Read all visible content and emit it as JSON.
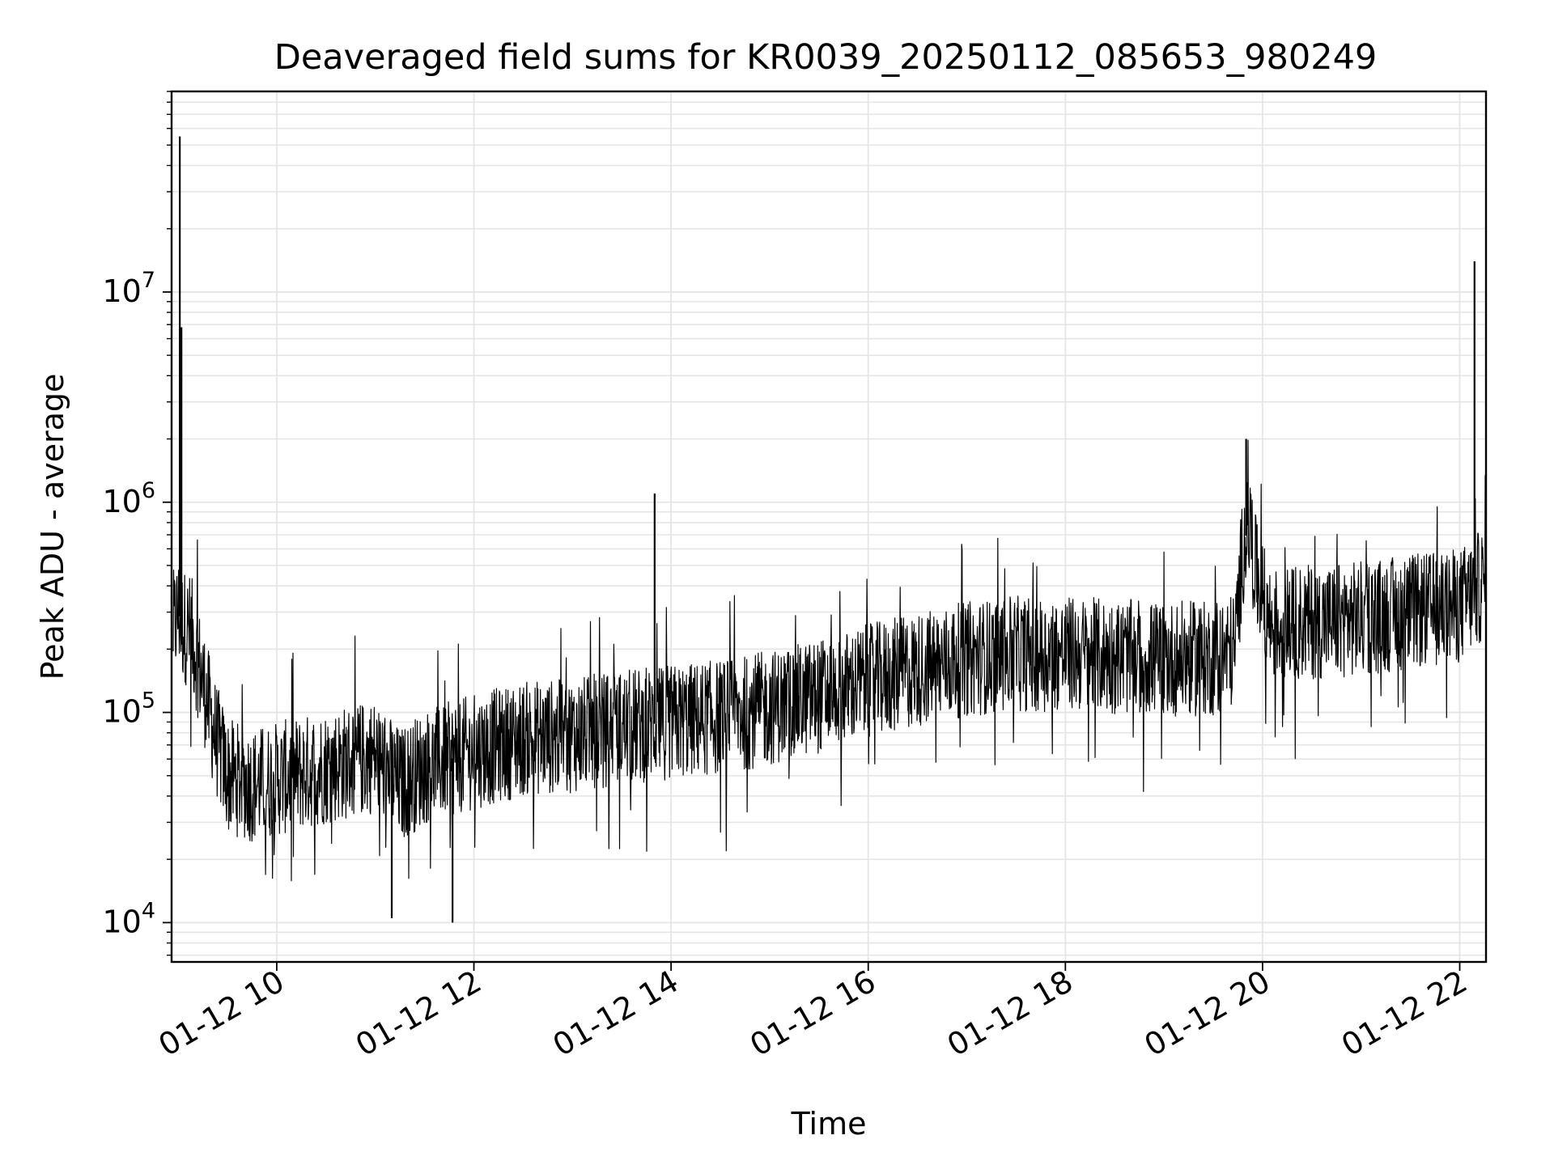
{
  "chart_data": {
    "type": "line",
    "title": "Deaveraged field sums for KR0039_20250112_085653_980249",
    "xlabel": "Time",
    "ylabel": "Peak ADU - average",
    "xscale": "time",
    "yscale": "log",
    "xlim": [
      "2025-01-12 08:56",
      "2025-01-12 22:16"
    ],
    "ylim": [
      6500,
      90000000
    ],
    "grid": true,
    "line_color": "#000000",
    "grid_color": "#e5e5e5",
    "x_tick_labels": [
      "01-12 10",
      "01-12 12",
      "01-12 14",
      "01-12 16",
      "01-12 18",
      "01-12 20",
      "01-12 22"
    ],
    "x_tick_times": [
      "2025-01-12 10:00",
      "2025-01-12 12:00",
      "2025-01-12 14:00",
      "2025-01-12 16:00",
      "2025-01-12 18:00",
      "2025-01-12 20:00",
      "2025-01-12 22:00"
    ],
    "y_tick_values": [
      10000,
      100000,
      1000000,
      10000000
    ],
    "y_tick_labels": [
      {
        "base": "10",
        "exp": "4"
      },
      {
        "base": "10",
        "exp": "5"
      },
      {
        "base": "10",
        "exp": "6"
      },
      {
        "base": "10",
        "exp": "7"
      }
    ],
    "series": [
      {
        "values": [
          {
            "x": "2025-01-12 08:57",
            "y": 250000
          },
          {
            "x": "2025-01-12 09:00",
            "y": 300000
          },
          {
            "x": "2025-01-12 09:03",
            "y": 260000
          },
          {
            "x": "2025-01-12 09:08",
            "y": 240000
          },
          {
            "x": "2025-01-12 09:15",
            "y": 140000
          },
          {
            "x": "2025-01-12 09:22",
            "y": 80000
          },
          {
            "x": "2025-01-12 09:30",
            "y": 50000
          },
          {
            "x": "2025-01-12 09:45",
            "y": 45000
          },
          {
            "x": "2025-01-12 10:00",
            "y": 48000
          },
          {
            "x": "2025-01-12 10:30",
            "y": 55000
          },
          {
            "x": "2025-01-12 11:00",
            "y": 62000
          },
          {
            "x": "2025-01-12 11:15",
            "y": 45000
          },
          {
            "x": "2025-01-12 11:30",
            "y": 55000
          },
          {
            "x": "2025-01-12 12:00",
            "y": 65000
          },
          {
            "x": "2025-01-12 12:30",
            "y": 75000
          },
          {
            "x": "2025-01-12 13:00",
            "y": 78000
          },
          {
            "x": "2025-01-12 13:30",
            "y": 85000
          },
          {
            "x": "2025-01-12 14:00",
            "y": 90000
          },
          {
            "x": "2025-01-12 14:30",
            "y": 95000
          },
          {
            "x": "2025-01-12 15:00",
            "y": 105000
          },
          {
            "x": "2025-01-12 15:30",
            "y": 120000
          },
          {
            "x": "2025-01-12 16:00",
            "y": 140000
          },
          {
            "x": "2025-01-12 16:30",
            "y": 160000
          },
          {
            "x": "2025-01-12 17:00",
            "y": 180000
          },
          {
            "x": "2025-01-12 17:30",
            "y": 190000
          },
          {
            "x": "2025-01-12 18:00",
            "y": 190000
          },
          {
            "x": "2025-01-12 18:30",
            "y": 185000
          },
          {
            "x": "2025-01-12 19:00",
            "y": 180000
          },
          {
            "x": "2025-01-12 19:30",
            "y": 180000
          },
          {
            "x": "2025-01-12 19:43",
            "y": 200000
          },
          {
            "x": "2025-01-12 19:48",
            "y": 600000
          },
          {
            "x": "2025-01-12 19:52",
            "y": 800000
          },
          {
            "x": "2025-01-12 19:56",
            "y": 450000
          },
          {
            "x": "2025-01-12 20:05",
            "y": 260000
          },
          {
            "x": "2025-01-12 20:30",
            "y": 270000
          },
          {
            "x": "2025-01-12 21:00",
            "y": 280000
          },
          {
            "x": "2025-01-12 21:30",
            "y": 300000
          },
          {
            "x": "2025-01-12 22:00",
            "y": 320000
          },
          {
            "x": "2025-01-12 22:16",
            "y": 420000
          }
        ],
        "spikes": [
          {
            "x": "2025-01-12 09:01",
            "y": 55000000
          },
          {
            "x": "2025-01-12 09:02",
            "y": 6800000
          },
          {
            "x": "2025-01-12 13:50",
            "y": 1100000
          },
          {
            "x": "2025-01-12 19:50",
            "y": 2000000
          },
          {
            "x": "2025-01-12 22:09",
            "y": 14000000
          },
          {
            "x": "2025-01-12 11:47",
            "y": 10000
          },
          {
            "x": "2025-01-12 11:10",
            "y": 10500
          }
        ]
      }
    ]
  }
}
